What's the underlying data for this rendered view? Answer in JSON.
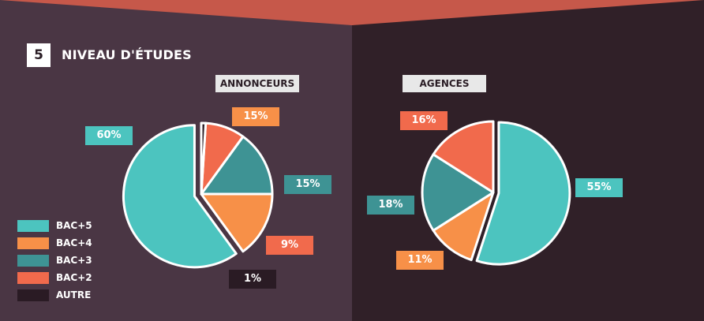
{
  "header": {
    "number": "5",
    "title": "NIVEAU D'ÉTUDES"
  },
  "colors": {
    "bac5": "#4cc4bf",
    "bac4": "#f79048",
    "bac3": "#3e9394",
    "bac2": "#f16a4c",
    "autre": "#2a1b24",
    "panel_left": "#4a3644",
    "panel_right": "#302028",
    "accent_top": "#c6584a"
  },
  "legend": [
    {
      "label": "BAC+5",
      "color": "#4cc4bf"
    },
    {
      "label": "BAC+4",
      "color": "#f79048"
    },
    {
      "label": "BAC+3",
      "color": "#3e9394"
    },
    {
      "label": "BAC+2",
      "color": "#f16a4c"
    },
    {
      "label": "AUTRE",
      "color": "#2a1b24"
    }
  ],
  "chart_data": [
    {
      "type": "pie",
      "title": "ANNONCEURS",
      "categories": [
        "BAC+5",
        "BAC+4",
        "BAC+3",
        "BAC+2",
        "AUTRE"
      ],
      "values": [
        60,
        15,
        15,
        9,
        1
      ],
      "labels": [
        "60%",
        "15%",
        "15%",
        "9%",
        "1%"
      ]
    },
    {
      "type": "pie",
      "title": "AGENCES",
      "categories": [
        "BAC+5",
        "BAC+4",
        "BAC+3",
        "BAC+2"
      ],
      "values": [
        55,
        11,
        18,
        16
      ],
      "labels": [
        "55%",
        "11%",
        "18%",
        "16%"
      ]
    }
  ]
}
